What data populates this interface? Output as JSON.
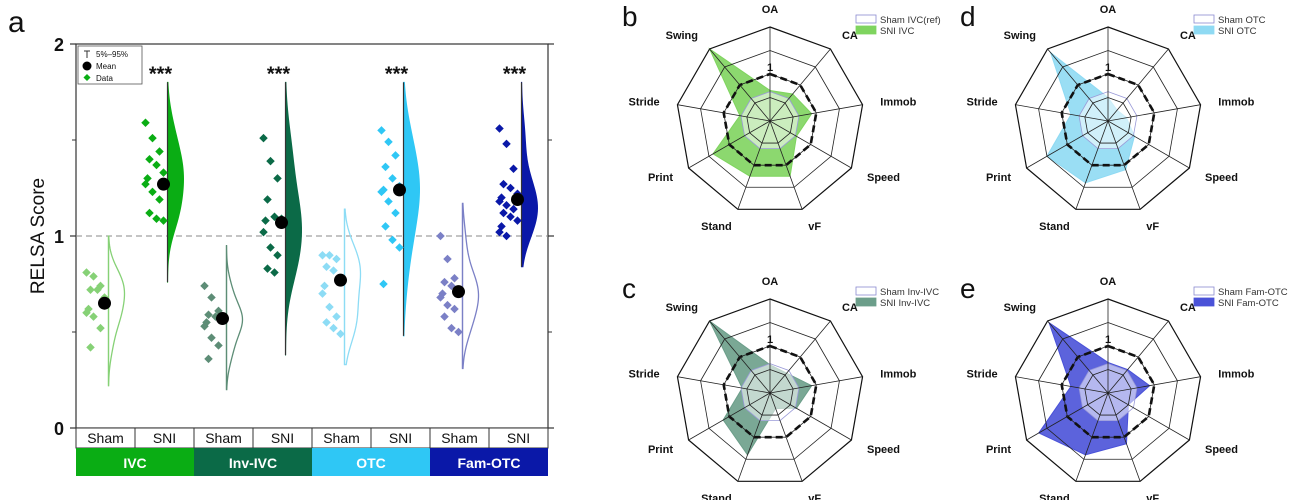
{
  "panel_labels": {
    "a": "a",
    "b": "b",
    "c": "c",
    "d": "d",
    "e": "e"
  },
  "chart_data": [
    {
      "type": "scatter",
      "variant": "half-violin with jittered data, mean and 5%-95% whiskers",
      "panel": "a",
      "ylabel": "RELSA Score",
      "ylim": [
        0,
        2
      ],
      "yticks": [
        "0",
        "1",
        "2"
      ],
      "reference_line": 1,
      "legend": {
        "whisker": "5%–95%",
        "mean": "Mean",
        "data": "Data",
        "position": "top-left"
      },
      "sig_label": "***",
      "groups": [
        {
          "name": "IVC",
          "color": "#0aad14",
          "light": "#86d176",
          "conditions": [
            {
              "label": "Sham",
              "mean": 0.65,
              "p5": 0.22,
              "p95": 1.0,
              "sig": false,
              "points": [
                0.81,
                0.79,
                0.74,
                0.72,
                0.72,
                0.68,
                0.62,
                0.6,
                0.58,
                0.52,
                0.42
              ]
            },
            {
              "label": "SNI",
              "mean": 1.27,
              "p5": 0.76,
              "p95": 1.8,
              "sig": true,
              "points": [
                1.59,
                1.51,
                1.44,
                1.4,
                1.37,
                1.33,
                1.3,
                1.27,
                1.23,
                1.19,
                1.12,
                1.09,
                1.08
              ]
            }
          ]
        },
        {
          "name": "Inv-IVC",
          "color": "#0b6a47",
          "light": "#5d8d76",
          "conditions": [
            {
              "label": "Sham",
              "mean": 0.57,
              "p5": 0.2,
              "p95": 0.95,
              "sig": false,
              "points": [
                0.74,
                0.68,
                0.61,
                0.59,
                0.58,
                0.56,
                0.55,
                0.53,
                0.47,
                0.43,
                0.36
              ]
            },
            {
              "label": "SNI",
              "mean": 1.07,
              "p5": 0.38,
              "p95": 1.8,
              "sig": true,
              "points": [
                1.51,
                1.39,
                1.3,
                1.19,
                1.1,
                1.09,
                1.08,
                1.02,
                0.94,
                0.9,
                0.83,
                0.81
              ]
            }
          ]
        },
        {
          "name": "OTC",
          "color": "#2fc7f5",
          "light": "#8ddcf5",
          "conditions": [
            {
              "label": "Sham",
              "mean": 0.77,
              "p5": 0.33,
              "p95": 1.14,
              "sig": false,
              "points": [
                0.9,
                0.9,
                0.88,
                0.84,
                0.82,
                0.78,
                0.74,
                0.7,
                0.63,
                0.58,
                0.55,
                0.52,
                0.49
              ]
            },
            {
              "label": "SNI",
              "mean": 1.24,
              "p5": 0.48,
              "p95": 1.8,
              "sig": true,
              "points": [
                1.55,
                1.49,
                1.42,
                1.36,
                1.3,
                1.26,
                1.24,
                1.23,
                1.18,
                1.12,
                1.05,
                0.98,
                0.94,
                0.75
              ]
            }
          ]
        },
        {
          "name": "Fam-OTC",
          "color": "#0a18a8",
          "light": "#7b80c6",
          "conditions": [
            {
              "label": "Sham",
              "mean": 0.71,
              "p5": 0.31,
              "p95": 1.17,
              "sig": false,
              "points": [
                1.0,
                0.88,
                0.78,
                0.76,
                0.74,
                0.72,
                0.7,
                0.68,
                0.64,
                0.62,
                0.58,
                0.52,
                0.5
              ]
            },
            {
              "label": "SNI",
              "mean": 1.19,
              "p5": 0.84,
              "p95": 1.8,
              "sig": true,
              "points": [
                1.56,
                1.48,
                1.35,
                1.27,
                1.25,
                1.22,
                1.2,
                1.18,
                1.16,
                1.14,
                1.12,
                1.1,
                1.08,
                1.05,
                1.02,
                1.0
              ]
            }
          ]
        }
      ]
    },
    {
      "type": "radar",
      "panel": "b",
      "axes": [
        "OA",
        "CA",
        "Immob",
        "Speed",
        "vF",
        "Stand",
        "Print",
        "Stride",
        "Swing"
      ],
      "ring_label": "1",
      "reference_ring": 1,
      "rmax": 4,
      "series": [
        {
          "name": "Sham IVC(ref)",
          "fill": "#ffffff",
          "values": [
            1,
            1,
            1,
            1,
            1,
            1,
            1,
            1,
            1
          ]
        },
        {
          "name": "SNI IVC",
          "fill": "#7fd45f",
          "values": [
            1.3,
            1.5,
            1.8,
            1.3,
            2.5,
            2.5,
            2.8,
            1.3,
            4.0
          ]
        }
      ]
    },
    {
      "type": "radar",
      "panel": "c",
      "axes": [
        "OA",
        "CA",
        "Immob",
        "Speed",
        "vF",
        "Stand",
        "Print",
        "Stride",
        "Swing"
      ],
      "ring_label": "1",
      "reference_ring": 1,
      "rmax": 4,
      "series": [
        {
          "name": "Sham Inv-IVC",
          "fill": "#ffffff",
          "values": [
            1,
            1,
            1,
            1,
            1,
            1,
            1,
            1,
            1
          ]
        },
        {
          "name": "SNI Inv-IVC",
          "fill": "#6c9e8a",
          "values": [
            1.2,
            1.1,
            1.8,
            1.3,
            0.7,
            2.8,
            2.3,
            1.2,
            4.0
          ]
        }
      ]
    },
    {
      "type": "radar",
      "panel": "d",
      "axes": [
        "OA",
        "CA",
        "Immob",
        "Speed",
        "vF",
        "Stand",
        "Print",
        "Stride",
        "Swing"
      ],
      "ring_label": "1",
      "reference_ring": 1,
      "rmax": 4,
      "series": [
        {
          "name": "Sham OTC",
          "fill": "#ffffff",
          "values": [
            1,
            1,
            1,
            1,
            1,
            1,
            1,
            1,
            1
          ]
        },
        {
          "name": "SNI OTC",
          "fill": "#8fdaf3",
          "values": [
            1.0,
            0.6,
            0.8,
            1.3,
            2.2,
            2.8,
            3.0,
            1.6,
            3.8
          ]
        }
      ]
    },
    {
      "type": "radar",
      "panel": "e",
      "axes": [
        "OA",
        "CA",
        "Immob",
        "Speed",
        "vF",
        "Stand",
        "Print",
        "Stride",
        "Swing"
      ],
      "ring_label": "1",
      "reference_ring": 1,
      "rmax": 4,
      "series": [
        {
          "name": "Sham Fam-OTC",
          "fill": "#ffffff",
          "values": [
            1,
            1,
            1,
            1,
            1,
            1,
            1,
            1,
            1
          ]
        },
        {
          "name": "SNI Fam-OTC",
          "fill": "#4a52d8",
          "values": [
            1.3,
            1.3,
            1.8,
            1.0,
            2.3,
            2.8,
            3.4,
            1.6,
            3.9
          ]
        }
      ]
    }
  ]
}
